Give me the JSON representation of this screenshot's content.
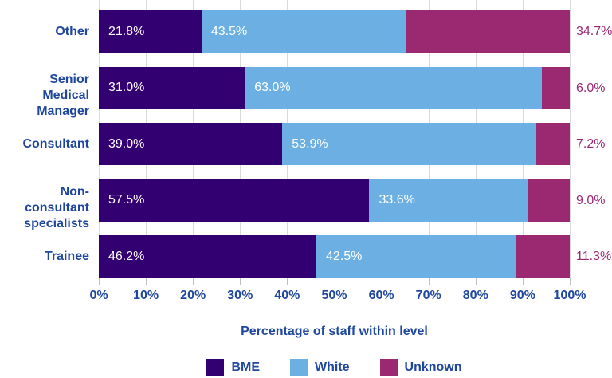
{
  "chart_data": {
    "type": "bar",
    "variant": "stacked-100-horizontal",
    "title": "",
    "xlabel": "Percentage of staff within level",
    "ylabel": "",
    "xlim": [
      0,
      100
    ],
    "x_ticks": [
      "0%",
      "10%",
      "20%",
      "30%",
      "40%",
      "50%",
      "60%",
      "70%",
      "80%",
      "90%",
      "100%"
    ],
    "grid": "vertical",
    "legend_position": "bottom",
    "categories": [
      "Other",
      "Senior Medical Manager",
      "Consultant",
      "Non-consultant specialists",
      "Trainee"
    ],
    "category_display": [
      [
        "Other"
      ],
      [
        "Senior Medical",
        "Manager"
      ],
      [
        "Consultant"
      ],
      [
        "Non-consultant",
        "specialists"
      ],
      [
        "Trainee"
      ]
    ],
    "series": [
      {
        "name": "BME",
        "color": "#330072",
        "label_position": "inside",
        "values": [
          21.8,
          31.0,
          39.0,
          57.5,
          46.2
        ]
      },
      {
        "name": "White",
        "color": "#6CB0E3",
        "label_position": "inside",
        "values": [
          43.5,
          63.0,
          53.9,
          33.6,
          42.5
        ]
      },
      {
        "name": "Unknown",
        "color": "#9A2972",
        "label_position": "outside-right",
        "values": [
          34.7,
          6.0,
          7.2,
          9.0,
          11.3
        ]
      }
    ]
  },
  "colors": {
    "axis_text": "#1F479E",
    "grid_line": "#D9D9D9",
    "tick_mark": "#BFBFBF",
    "inside_label": "#FFFFFF",
    "outside_label": "#9A2972",
    "background": "#FFFFFF"
  }
}
